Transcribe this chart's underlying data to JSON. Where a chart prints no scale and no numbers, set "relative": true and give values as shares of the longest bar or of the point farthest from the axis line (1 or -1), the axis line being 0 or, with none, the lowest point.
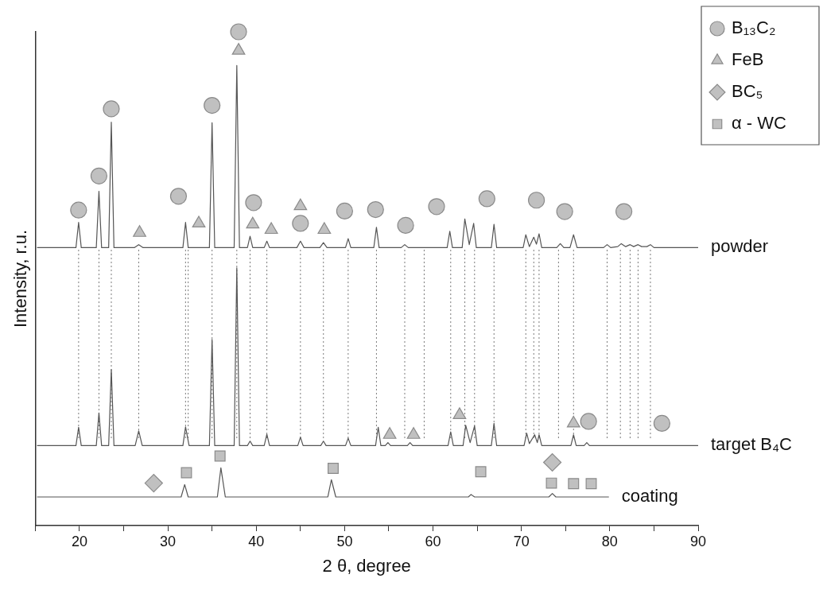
{
  "chart_data": {
    "type": "line",
    "relative": true,
    "xlabel": "2 θ, degree",
    "ylabel": "Intensity, r.u.",
    "xlim": [
      15,
      90
    ],
    "xticks": [
      {
        "value": 15,
        "label": null
      },
      20,
      {
        "value": 25,
        "label": null
      },
      30,
      {
        "value": 35,
        "label": null
      },
      40,
      {
        "value": 45,
        "label": null
      },
      50,
      {
        "value": 55,
        "label": null
      },
      60,
      {
        "value": 65,
        "label": null
      },
      70,
      {
        "value": 75,
        "label": null
      },
      80,
      {
        "value": 85,
        "label": null
      },
      90
    ],
    "grid": false,
    "legend": "top right",
    "marker": "none",
    "line_style": "solid",
    "series": [
      {
        "name": "powder",
        "color": "#555555",
        "x": [
          15.2,
          19.6,
          19.9,
          20.2,
          21.9,
          22.2,
          22.5,
          23.3,
          23.6,
          23.9,
          26.2,
          26.7,
          27.2,
          31.7,
          32.0,
          32.3,
          34.7,
          35.0,
          35.3,
          37.5,
          37.8,
          38.1,
          39.0,
          39.3,
          39.6,
          40.9,
          41.2,
          41.5,
          44.6,
          45.0,
          45.4,
          47.2,
          47.6,
          48.0,
          50.1,
          50.4,
          50.7,
          53.3,
          53.6,
          53.9,
          56.4,
          56.8,
          57.2,
          61.6,
          61.9,
          62.2,
          63.3,
          63.6,
          64.1,
          64.6,
          64.9,
          66.6,
          66.9,
          67.2,
          70.2,
          70.5,
          70.9,
          71.4,
          71.7,
          72.0,
          72.3,
          74.0,
          74.4,
          74.8,
          75.5,
          75.9,
          76.3,
          79.3,
          79.7,
          80.1,
          80.9,
          81.3,
          81.8,
          82.3,
          82.7,
          83.2,
          83.6,
          84.2,
          84.6,
          85.0,
          90.0
        ],
        "values": [
          0.563,
          0.563,
          0.614,
          0.563,
          0.563,
          0.677,
          0.563,
          0.563,
          0.817,
          0.563,
          0.563,
          0.569,
          0.563,
          0.563,
          0.614,
          0.563,
          0.563,
          0.816,
          0.563,
          0.563,
          0.932,
          0.563,
          0.563,
          0.586,
          0.563,
          0.563,
          0.576,
          0.563,
          0.563,
          0.576,
          0.563,
          0.563,
          0.573,
          0.563,
          0.563,
          0.581,
          0.563,
          0.563,
          0.604,
          0.563,
          0.563,
          0.569,
          0.563,
          0.563,
          0.596,
          0.563,
          0.563,
          0.621,
          0.569,
          0.612,
          0.563,
          0.563,
          0.61,
          0.563,
          0.563,
          0.589,
          0.565,
          0.584,
          0.57,
          0.591,
          0.563,
          0.563,
          0.571,
          0.563,
          0.563,
          0.589,
          0.563,
          0.563,
          0.569,
          0.563,
          0.565,
          0.571,
          0.565,
          0.569,
          0.565,
          0.569,
          0.565,
          0.565,
          0.569,
          0.563,
          0.563
        ]
      },
      {
        "name": "target B₄C",
        "color": "#555555",
        "x": [
          15.2,
          19.6,
          19.9,
          20.2,
          21.9,
          22.2,
          22.5,
          23.3,
          23.6,
          23.9,
          26.3,
          26.7,
          27.1,
          31.7,
          32.0,
          32.4,
          34.7,
          35.0,
          35.3,
          37.5,
          37.8,
          38.1,
          39.0,
          39.3,
          39.6,
          40.9,
          41.2,
          41.5,
          44.7,
          45.0,
          45.3,
          47.3,
          47.6,
          47.9,
          50.1,
          50.4,
          50.7,
          53.5,
          53.8,
          54.1,
          54.6,
          54.9,
          55.2,
          57.1,
          57.4,
          57.7,
          61.7,
          62.0,
          62.3,
          63.4,
          63.7,
          64.2,
          64.7,
          65.0,
          66.6,
          66.9,
          67.2,
          70.3,
          70.6,
          70.9,
          71.5,
          71.8,
          72.0,
          72.3,
          75.6,
          75.9,
          76.2,
          77.1,
          77.4,
          77.7,
          90.0
        ],
        "values": [
          0.162,
          0.162,
          0.199,
          0.162,
          0.162,
          0.228,
          0.162,
          0.162,
          0.316,
          0.162,
          0.162,
          0.192,
          0.162,
          0.162,
          0.2,
          0.162,
          0.162,
          0.377,
          0.162,
          0.162,
          0.522,
          0.162,
          0.162,
          0.171,
          0.162,
          0.162,
          0.185,
          0.162,
          0.162,
          0.179,
          0.162,
          0.162,
          0.171,
          0.162,
          0.162,
          0.177,
          0.162,
          0.162,
          0.199,
          0.162,
          0.162,
          0.168,
          0.162,
          0.162,
          0.168,
          0.162,
          0.162,
          0.19,
          0.162,
          0.162,
          0.203,
          0.168,
          0.202,
          0.162,
          0.162,
          0.207,
          0.162,
          0.162,
          0.187,
          0.166,
          0.184,
          0.168,
          0.184,
          0.162,
          0.162,
          0.184,
          0.162,
          0.162,
          0.168,
          0.162,
          0.162
        ]
      },
      {
        "name": "coating",
        "color": "#555555",
        "x": [
          15.2,
          31.5,
          31.9,
          32.3,
          35.6,
          36.0,
          36.5,
          48.1,
          48.5,
          49.0,
          64.0,
          64.3,
          64.7,
          73.1,
          73.5,
          73.9,
          79.9
        ],
        "values": [
          0.058,
          0.058,
          0.083,
          0.058,
          0.058,
          0.117,
          0.058,
          0.058,
          0.093,
          0.058,
          0.058,
          0.063,
          0.058,
          0.058,
          0.065,
          0.058,
          0.058
        ]
      },
      {
        "color": "#777777",
        "line_style": "dotted",
        "x": [
          19.9,
          19.9
        ],
        "values": [
          0.177,
          0.559
        ]
      },
      {
        "color": "#777777",
        "line_style": "dotted",
        "x": [
          22.2,
          22.2
        ],
        "values": [
          0.177,
          0.559
        ]
      },
      {
        "color": "#777777",
        "line_style": "dotted",
        "x": [
          23.6,
          23.6
        ],
        "values": [
          0.177,
          0.559
        ]
      },
      {
        "color": "#777777",
        "line_style": "dotted",
        "x": [
          26.7,
          26.7
        ],
        "values": [
          0.177,
          0.559
        ]
      },
      {
        "color": "#777777",
        "line_style": "dotted",
        "x": [
          32.0,
          32.0
        ],
        "values": [
          0.177,
          0.559
        ]
      },
      {
        "color": "#777777",
        "line_style": "dotted",
        "x": [
          32.3,
          32.3
        ],
        "values": [
          0.177,
          0.559
        ]
      },
      {
        "color": "#777777",
        "line_style": "dotted",
        "x": [
          35.0,
          35.0
        ],
        "values": [
          0.177,
          0.559
        ]
      },
      {
        "color": "#777777",
        "line_style": "dotted",
        "x": [
          37.8,
          37.8
        ],
        "values": [
          0.177,
          0.559
        ]
      },
      {
        "color": "#777777",
        "line_style": "dotted",
        "x": [
          39.3,
          39.3
        ],
        "values": [
          0.177,
          0.559
        ]
      },
      {
        "color": "#777777",
        "line_style": "dotted",
        "x": [
          41.2,
          41.2
        ],
        "values": [
          0.177,
          0.559
        ]
      },
      {
        "color": "#777777",
        "line_style": "dotted",
        "x": [
          45.0,
          45.0
        ],
        "values": [
          0.177,
          0.559
        ]
      },
      {
        "color": "#777777",
        "line_style": "dotted",
        "x": [
          47.6,
          47.6
        ],
        "values": [
          0.177,
          0.559
        ]
      },
      {
        "color": "#777777",
        "line_style": "dotted",
        "x": [
          50.4,
          50.4
        ],
        "values": [
          0.177,
          0.559
        ]
      },
      {
        "color": "#777777",
        "line_style": "dotted",
        "x": [
          53.6,
          53.6
        ],
        "values": [
          0.177,
          0.559
        ]
      },
      {
        "color": "#777777",
        "line_style": "dotted",
        "x": [
          56.8,
          56.8
        ],
        "values": [
          0.177,
          0.559
        ]
      },
      {
        "color": "#777777",
        "line_style": "dotted",
        "x": [
          59.0,
          59.0
        ],
        "values": [
          0.177,
          0.559
        ]
      },
      {
        "color": "#777777",
        "line_style": "dotted",
        "x": [
          62.0,
          62.0
        ],
        "values": [
          0.177,
          0.559
        ]
      },
      {
        "color": "#777777",
        "line_style": "dotted",
        "x": [
          63.6,
          63.6
        ],
        "values": [
          0.177,
          0.559
        ]
      },
      {
        "color": "#777777",
        "line_style": "dotted",
        "x": [
          64.7,
          64.7
        ],
        "values": [
          0.177,
          0.559
        ]
      },
      {
        "color": "#777777",
        "line_style": "dotted",
        "x": [
          66.9,
          66.9
        ],
        "values": [
          0.177,
          0.559
        ]
      },
      {
        "color": "#777777",
        "line_style": "dotted",
        "x": [
          70.5,
          70.5
        ],
        "values": [
          0.177,
          0.559
        ]
      },
      {
        "color": "#777777",
        "line_style": "dotted",
        "x": [
          71.4,
          71.4
        ],
        "values": [
          0.177,
          0.559
        ]
      },
      {
        "color": "#777777",
        "line_style": "dotted",
        "x": [
          72.0,
          72.0
        ],
        "values": [
          0.177,
          0.559
        ]
      },
      {
        "color": "#777777",
        "line_style": "dotted",
        "x": [
          74.2,
          74.2
        ],
        "values": [
          0.177,
          0.559
        ]
      },
      {
        "color": "#777777",
        "line_style": "dotted",
        "x": [
          75.9,
          75.9
        ],
        "values": [
          0.177,
          0.559
        ]
      },
      {
        "color": "#777777",
        "line_style": "dotted",
        "x": [
          79.7,
          79.7
        ],
        "values": [
          0.177,
          0.559
        ]
      },
      {
        "color": "#777777",
        "line_style": "dotted",
        "x": [
          81.2,
          81.2
        ],
        "values": [
          0.177,
          0.559
        ]
      },
      {
        "color": "#777777",
        "line_style": "dotted",
        "x": [
          82.3,
          82.3
        ],
        "values": [
          0.177,
          0.559
        ]
      },
      {
        "color": "#777777",
        "line_style": "dotted",
        "x": [
          83.2,
          83.2
        ],
        "values": [
          0.177,
          0.559
        ]
      },
      {
        "color": "#777777",
        "line_style": "dotted",
        "x": [
          84.6,
          84.6
        ],
        "values": [
          0.177,
          0.559
        ]
      },
      {
        "name": "B₁₃C₂",
        "type": "scatter",
        "marker": "circle",
        "color": "#c0c0c0",
        "x": [
          19.9,
          22.2,
          23.6,
          31.2,
          35.0,
          38.0,
          39.7,
          45.0,
          50.0,
          53.5,
          56.9,
          60.4,
          66.1,
          71.7,
          74.9,
          81.6,
          77.6,
          85.9
        ],
        "values": [
          0.639,
          0.708,
          0.844,
          0.667,
          0.851,
          1,
          0.654,
          0.612,
          0.637,
          0.64,
          0.608,
          0.646,
          0.662,
          0.659,
          0.636,
          0.636,
          0.211,
          0.207
        ]
      },
      {
        "name": "FeB",
        "type": "scatter",
        "marker": "triangle",
        "color": "#c0c0c0",
        "x": [
          26.8,
          33.5,
          38.0,
          39.6,
          41.7,
          45.0,
          47.7,
          55.1,
          57.8,
          63.0,
          75.9
        ],
        "values": [
          0.593,
          0.612,
          0.962,
          0.61,
          0.599,
          0.647,
          0.599,
          0.184,
          0.184,
          0.224,
          0.207
        ]
      },
      {
        "name": "BC₅",
        "type": "scatter",
        "marker": "diamond",
        "color": "#c0c0c0",
        "x": [
          28.4,
          73.5
        ],
        "values": [
          0.086,
          0.128
        ]
      },
      {
        "name": "α - WC",
        "type": "scatter",
        "marker": "square",
        "color": "#c0c0c0",
        "x": [
          32.1,
          35.9,
          48.7,
          65.4,
          73.4,
          75.9,
          77.9
        ],
        "values": [
          0.107,
          0.141,
          0.116,
          0.109,
          0.086,
          0.085,
          0.085
        ]
      }
    ]
  }
}
